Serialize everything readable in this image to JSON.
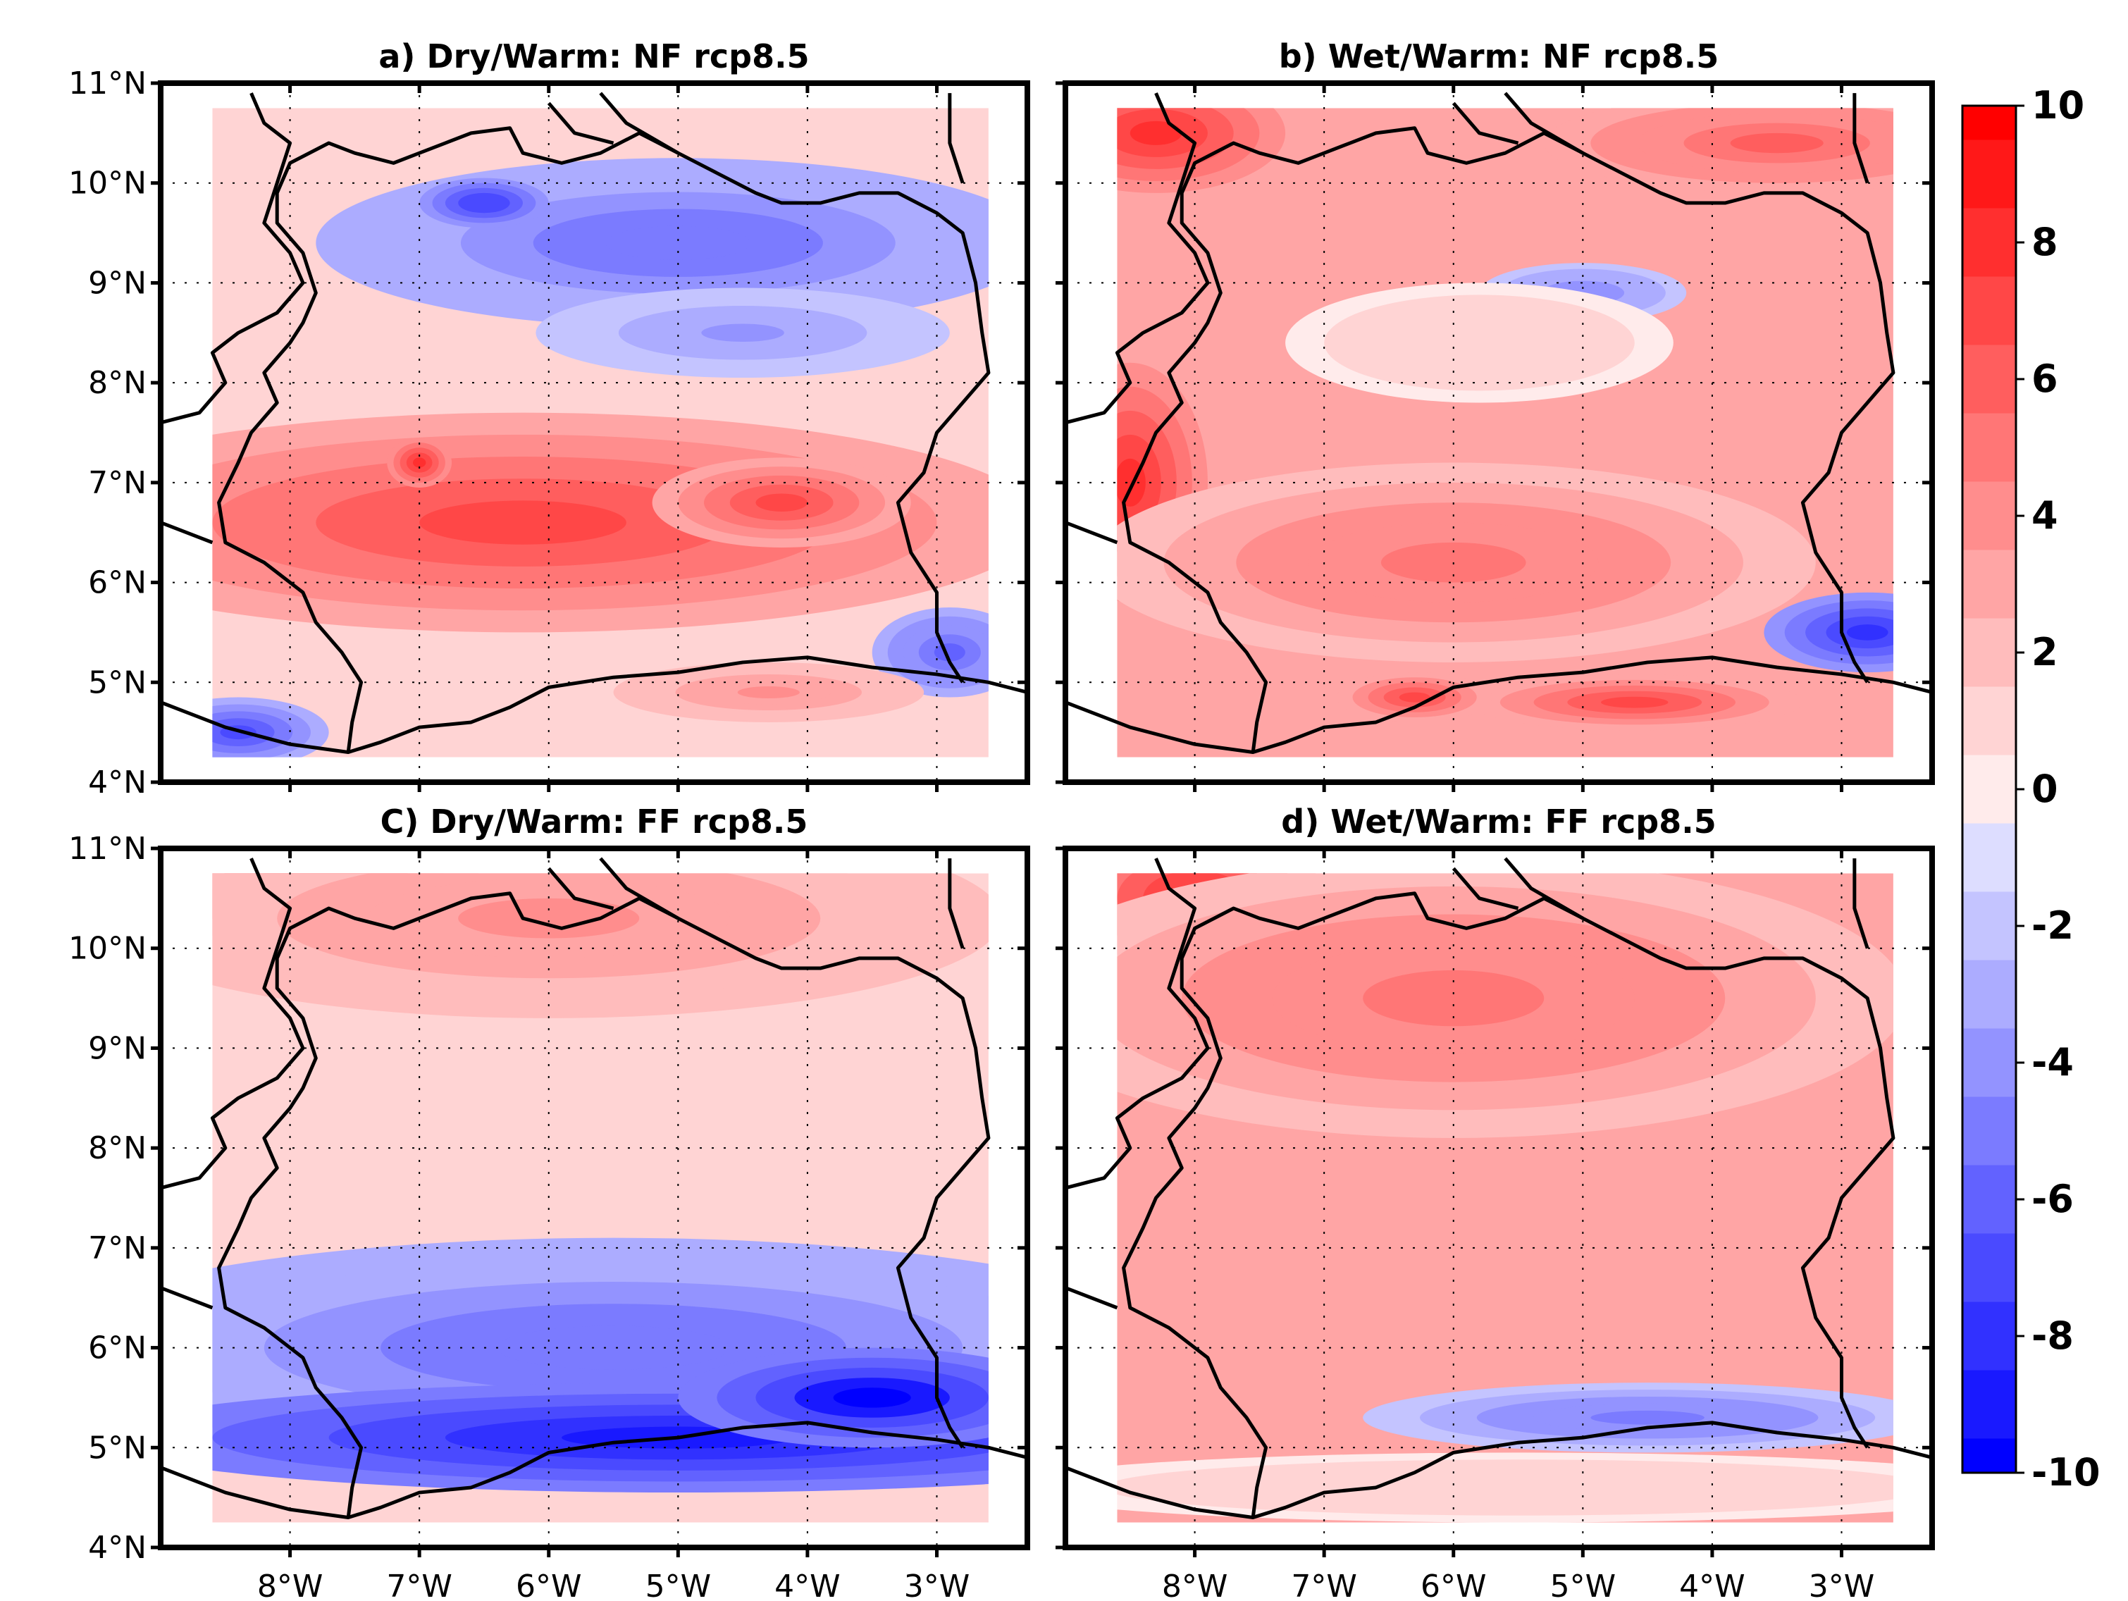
{
  "figure": {
    "panels": [
      {
        "id": "a",
        "title": "a) Dry/Warm: NF rcp8.5",
        "features": [
          {
            "kind": "red",
            "v": 6.5,
            "cx": -6.2,
            "cy": 6.6,
            "rx": 4.0,
            "ry": 1.1
          },
          {
            "kind": "red",
            "v": 8.0,
            "cx": -7.0,
            "cy": 7.2,
            "rx": 0.25,
            "ry": 0.25
          },
          {
            "kind": "red",
            "v": 7.0,
            "cx": -4.2,
            "cy": 6.8,
            "rx": 1.0,
            "ry": 0.45
          },
          {
            "kind": "blue",
            "v": -5.5,
            "cx": -5.0,
            "cy": 9.4,
            "rx": 2.8,
            "ry": 0.85
          },
          {
            "kind": "blue",
            "v": -7.5,
            "cx": -6.5,
            "cy": 9.8,
            "rx": 0.5,
            "ry": 0.25
          },
          {
            "kind": "blue",
            "v": -4.0,
            "cx": -4.5,
            "cy": 8.5,
            "rx": 1.6,
            "ry": 0.45
          },
          {
            "kind": "blue",
            "v": -6.0,
            "cx": -2.9,
            "cy": 5.3,
            "rx": 0.6,
            "ry": 0.45
          },
          {
            "kind": "blue",
            "v": -7.0,
            "cx": -8.4,
            "cy": 4.5,
            "rx": 0.7,
            "ry": 0.35
          },
          {
            "kind": "red",
            "v": 3.5,
            "cx": -4.3,
            "cy": 4.9,
            "rx": 1.2,
            "ry": 0.3
          }
        ]
      },
      {
        "id": "b",
        "title": "b)  Wet/Warm: NF rcp8.5",
        "features": [
          {
            "kind": "red",
            "v": 8.0,
            "cx": -8.3,
            "cy": 10.5,
            "rx": 1.0,
            "ry": 0.6
          },
          {
            "kind": "red",
            "v": 6.0,
            "cx": -3.5,
            "cy": 10.4,
            "rx": 1.8,
            "ry": 0.5
          },
          {
            "kind": "red",
            "v": 7.5,
            "cx": -8.5,
            "cy": 7.0,
            "rx": 0.6,
            "ry": 1.2
          },
          {
            "kind": "red",
            "v": 5.0,
            "cx": -6.0,
            "cy": 6.2,
            "rx": 2.8,
            "ry": 1.0
          },
          {
            "kind": "red",
            "v": 7.0,
            "cx": -4.6,
            "cy": 4.8,
            "rx": 1.3,
            "ry": 0.28
          },
          {
            "kind": "red",
            "v": 6.5,
            "cx": -6.3,
            "cy": 4.85,
            "rx": 0.6,
            "ry": 0.25
          },
          {
            "kind": "blue",
            "v": -4.5,
            "cx": -5.0,
            "cy": 8.9,
            "rx": 0.8,
            "ry": 0.3
          },
          {
            "kind": "blue",
            "v": -8.5,
            "cx": -2.8,
            "cy": 5.5,
            "rx": 0.8,
            "ry": 0.4
          },
          {
            "kind": "red",
            "v": 1.0,
            "cx": -5.8,
            "cy": 8.4,
            "rx": 1.5,
            "ry": 0.6
          }
        ]
      },
      {
        "id": "c",
        "title": "C)  Dry/Warm: FF rcp8.5",
        "features": [
          {
            "kind": "red",
            "v": 7.0,
            "cx": -7.8,
            "cy": 10.6,
            "rx": 1.3,
            "ry": 0.6
          },
          {
            "kind": "red",
            "v": 4.0,
            "cx": -6.0,
            "cy": 10.3,
            "rx": 3.5,
            "ry": 1.0
          },
          {
            "kind": "blue",
            "v": -5.5,
            "cx": -5.5,
            "cy": 6.0,
            "rx": 4.5,
            "ry": 1.1
          },
          {
            "kind": "blue",
            "v": -9.5,
            "cx": -5.0,
            "cy": 5.1,
            "rx": 4.5,
            "ry": 0.55
          },
          {
            "kind": "blue",
            "v": -10.0,
            "cx": -3.5,
            "cy": 5.5,
            "rx": 1.5,
            "ry": 0.5
          }
        ]
      },
      {
        "id": "d",
        "title": "d) Wet/Warm: FF rcp8.5",
        "features": [
          {
            "kind": "red",
            "v": 7.5,
            "cx": -8.0,
            "cy": 10.5,
            "rx": 1.0,
            "ry": 0.7
          },
          {
            "kind": "red",
            "v": 5.0,
            "cx": -6.0,
            "cy": 9.5,
            "rx": 3.5,
            "ry": 1.4
          },
          {
            "kind": "blue",
            "v": -5.0,
            "cx": -4.5,
            "cy": 5.3,
            "rx": 2.2,
            "ry": 0.35
          },
          {
            "kind": "red",
            "v": 1.0,
            "cx": -5.5,
            "cy": 4.6,
            "rx": 4.0,
            "ry": 0.35
          }
        ]
      }
    ],
    "y_ticks": [
      "11°N",
      "10°N",
      "9°N",
      "8°N",
      "7°N",
      "6°N",
      "5°N",
      "4°N"
    ],
    "x_ticks": [
      "8°W",
      "7°W",
      "6°W",
      "5°W",
      "4°W",
      "3°W"
    ],
    "colorbar": {
      "min": -10,
      "max": 10,
      "tick_labels": [
        "10",
        "8",
        "6",
        "4",
        "2",
        "0",
        "-2",
        "-4",
        "-6",
        "-8",
        "-10"
      ],
      "colors": {
        "max_red": "#ff0000",
        "mid": "#ffffff",
        "max_blue": "#0000ff"
      }
    }
  },
  "chart_data": {
    "type": "heatmap",
    "map_extent": {
      "lon": [
        -9.0,
        -2.3
      ],
      "lat": [
        4.0,
        11.0
      ]
    },
    "y_tick_labels": [
      "11°N",
      "10°N",
      "9°N",
      "8°N",
      "7°N",
      "6°N",
      "5°N",
      "4°N"
    ],
    "x_tick_labels": [
      "8°W",
      "7°W",
      "6°W",
      "5°W",
      "4°W",
      "3°W"
    ],
    "colorbar_range": [
      -10,
      10
    ],
    "colorbar_ticks": [
      10,
      8,
      6,
      4,
      2,
      0,
      -2,
      -4,
      -6,
      -8,
      -10
    ],
    "panels": [
      {
        "title": "a) Dry/Warm: NF rcp8.5"
      },
      {
        "title": "b)  Wet/Warm: NF rcp8.5"
      },
      {
        "title": "C)  Dry/Warm: FF rcp8.5"
      },
      {
        "title": "d) Wet/Warm: FF rcp8.5"
      }
    ]
  }
}
